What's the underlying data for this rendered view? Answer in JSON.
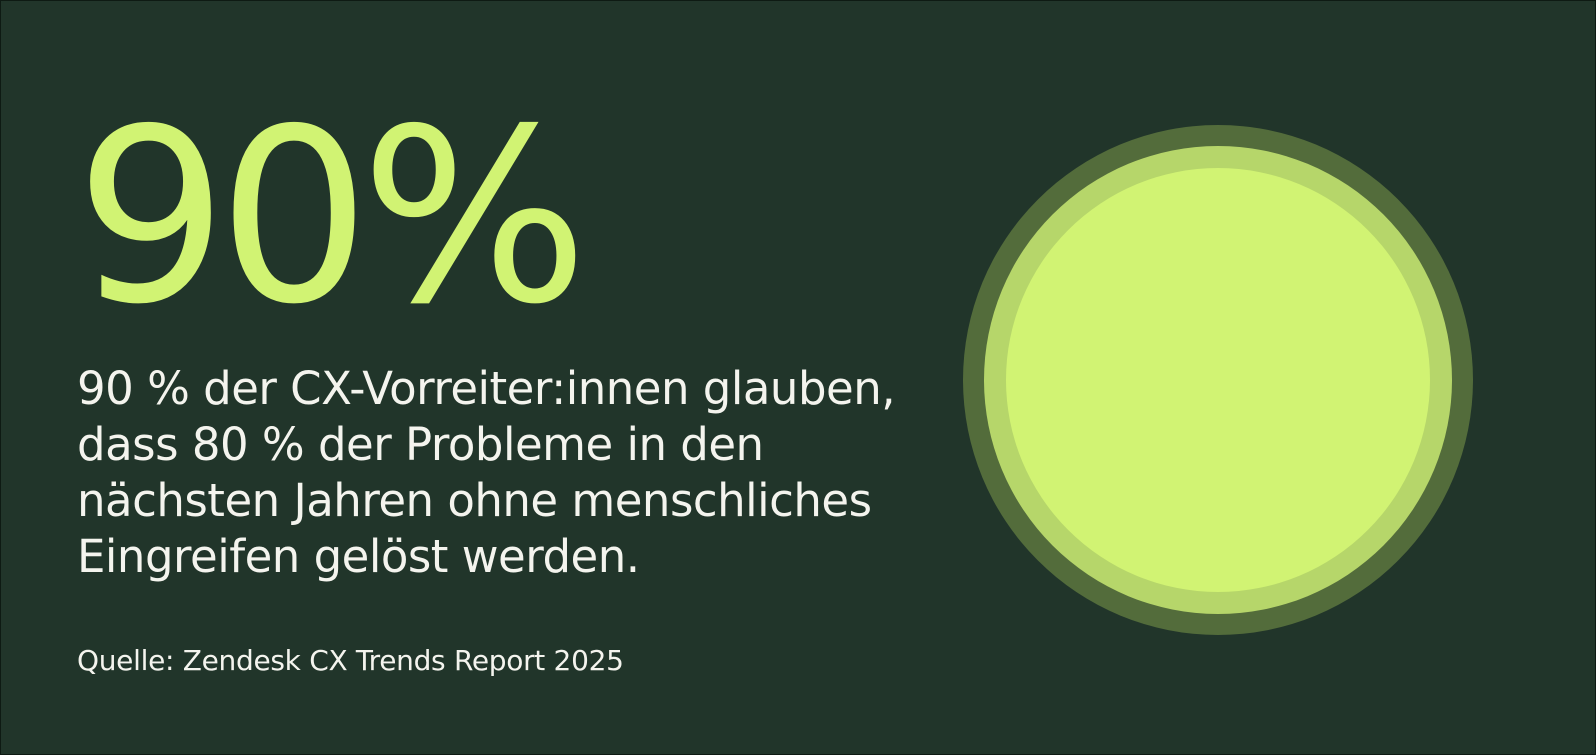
{
  "stat": {
    "value": "90%",
    "description": "90 % der CX-Vorreiter:innen glauben, dass 80 % der Probleme in den nächsten Jahren ohne menschliches Eingreifen gelöst werden.",
    "source": "Quelle: Zendesk CX Trends Report 2025"
  },
  "colors": {
    "background": "#21352a",
    "accent": "#d1f373",
    "circle_outer": "#536c3b",
    "circle_middle": "#b6d66a",
    "circle_inner": "#d1f373",
    "text": "#f4f4ee"
  }
}
